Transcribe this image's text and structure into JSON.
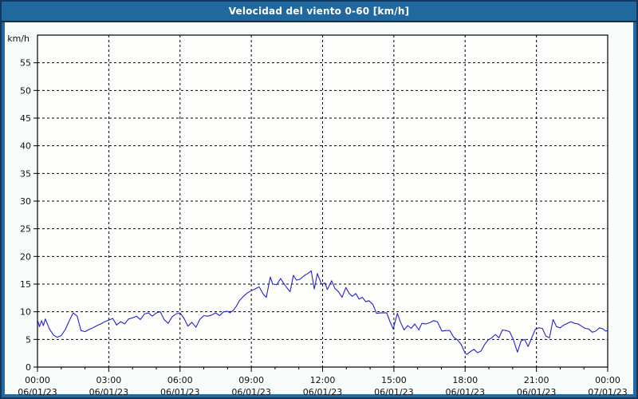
{
  "colors": {
    "outer_border": "#16375c",
    "frame": "#24689e",
    "titlebar": "#21689f",
    "title_separator": "#0d2e4d",
    "content_bg": "#f7fbfa",
    "plot_bg": "#fefefd",
    "grid": "#000000",
    "axis": "#000000",
    "line": "#2323cd"
  },
  "chart_data": {
    "type": "line",
    "title": "Velocidad del viento 0-60 [km/h]",
    "ylabel": "km/h",
    "xlabel": "",
    "ylim": [
      0,
      60
    ],
    "xlim_hours": [
      0,
      24
    ],
    "y_tick_step": 5,
    "y_ticks": [
      0,
      5,
      10,
      15,
      20,
      25,
      30,
      35,
      40,
      45,
      50,
      55
    ],
    "grid": "dashed",
    "legend": "none",
    "x_minor_tick_hours": 1,
    "x_major_ticks": [
      {
        "hour": 0,
        "time": "00:00",
        "date": "06/01/23"
      },
      {
        "hour": 3,
        "time": "03:00",
        "date": "06/01/23"
      },
      {
        "hour": 6,
        "time": "06:00",
        "date": "06/01/23"
      },
      {
        "hour": 9,
        "time": "09:00",
        "date": "06/01/23"
      },
      {
        "hour": 12,
        "time": "12:00",
        "date": "06/01/23"
      },
      {
        "hour": 15,
        "time": "15:00",
        "date": "06/01/23"
      },
      {
        "hour": 18,
        "time": "18:00",
        "date": "06/01/23"
      },
      {
        "hour": 21,
        "time": "21:00",
        "date": "06/01/23"
      },
      {
        "hour": 24,
        "time": "00:00",
        "date": "07/01/23"
      }
    ],
    "series": [
      {
        "name": "Velocidad del viento",
        "unit": "km/h",
        "points": [
          [
            0,
            8.6
          ],
          [
            0.08,
            7.3
          ],
          [
            0.17,
            8.4
          ],
          [
            0.25,
            7.5
          ],
          [
            0.33,
            8.7
          ],
          [
            0.5,
            6.9
          ],
          [
            0.67,
            5.8
          ],
          [
            0.83,
            5.4
          ],
          [
            1,
            5.7
          ],
          [
            1.17,
            6.8
          ],
          [
            1.33,
            8.3
          ],
          [
            1.5,
            9.8
          ],
          [
            1.67,
            9.2
          ],
          [
            1.83,
            6.6
          ],
          [
            2,
            6.4
          ],
          [
            2.17,
            6.8
          ],
          [
            2.33,
            7.1
          ],
          [
            2.5,
            7.5
          ],
          [
            2.67,
            7.8
          ],
          [
            2.83,
            8.2
          ],
          [
            3,
            8.5
          ],
          [
            3.17,
            8.8
          ],
          [
            3.33,
            7.6
          ],
          [
            3.5,
            8.2
          ],
          [
            3.67,
            7.8
          ],
          [
            3.83,
            8.7
          ],
          [
            4,
            8.9
          ],
          [
            4.17,
            9.2
          ],
          [
            4.33,
            8.6
          ],
          [
            4.5,
            9.6
          ],
          [
            4.67,
            9.8
          ],
          [
            4.83,
            9.2
          ],
          [
            5,
            9.8
          ],
          [
            5.17,
            10
          ],
          [
            5.33,
            8.6
          ],
          [
            5.5,
            7.9
          ],
          [
            5.67,
            9.1
          ],
          [
            5.83,
            9.6
          ],
          [
            6,
            9.8
          ],
          [
            6.17,
            8.8
          ],
          [
            6.33,
            7.4
          ],
          [
            6.5,
            8.1
          ],
          [
            6.67,
            7.2
          ],
          [
            6.83,
            8.6
          ],
          [
            7,
            9.3
          ],
          [
            7.17,
            9.2
          ],
          [
            7.33,
            9.4
          ],
          [
            7.5,
            9.8
          ],
          [
            7.67,
            9.3
          ],
          [
            7.83,
            10
          ],
          [
            8,
            10.1
          ],
          [
            8.1,
            9.8
          ],
          [
            8.25,
            10.3
          ],
          [
            8.37,
            11
          ],
          [
            8.5,
            12
          ],
          [
            8.67,
            12.8
          ],
          [
            8.83,
            13.4
          ],
          [
            9,
            13.8
          ],
          [
            9.15,
            14.1
          ],
          [
            9.33,
            14.5
          ],
          [
            9.5,
            13.2
          ],
          [
            9.63,
            12.6
          ],
          [
            9.8,
            16.3
          ],
          [
            9.9,
            15
          ],
          [
            10.07,
            14.9
          ],
          [
            10.23,
            16
          ],
          [
            10.4,
            14.9
          ],
          [
            10.63,
            13.6
          ],
          [
            10.77,
            16.6
          ],
          [
            10.9,
            15.7
          ],
          [
            11.05,
            15.9
          ],
          [
            11.25,
            16.6
          ],
          [
            11.38,
            16.9
          ],
          [
            11.52,
            17.4
          ],
          [
            11.65,
            14.1
          ],
          [
            11.78,
            16.9
          ],
          [
            11.95,
            15
          ],
          [
            12.1,
            15.2
          ],
          [
            12.2,
            14
          ],
          [
            12.38,
            15.6
          ],
          [
            12.52,
            14.2
          ],
          [
            12.67,
            13.6
          ],
          [
            12.82,
            12.6
          ],
          [
            12.98,
            14.4
          ],
          [
            13.12,
            13.3
          ],
          [
            13.25,
            12.8
          ],
          [
            13.4,
            13.3
          ],
          [
            13.53,
            12.3
          ],
          [
            13.67,
            12.6
          ],
          [
            13.82,
            11.8
          ],
          [
            13.95,
            12
          ],
          [
            14.12,
            11.3
          ],
          [
            14.27,
            9.7
          ],
          [
            14.45,
            9.8
          ],
          [
            14.7,
            9.8
          ],
          [
            14.83,
            8.3
          ],
          [
            14.97,
            6.9
          ],
          [
            15.15,
            9.7
          ],
          [
            15.28,
            8.1
          ],
          [
            15.43,
            6.7
          ],
          [
            15.58,
            7.5
          ],
          [
            15.73,
            7
          ],
          [
            15.88,
            7.8
          ],
          [
            16.05,
            6.7
          ],
          [
            16.18,
            7.9
          ],
          [
            16.35,
            7.8
          ],
          [
            16.5,
            8
          ],
          [
            16.68,
            8.4
          ],
          [
            16.83,
            8.2
          ],
          [
            17.02,
            6.5
          ],
          [
            17.18,
            6.6
          ],
          [
            17.35,
            6.6
          ],
          [
            17.52,
            5.4
          ],
          [
            17.68,
            4.9
          ],
          [
            17.83,
            4.1
          ],
          [
            18,
            2.5
          ],
          [
            18.08,
            2.3
          ],
          [
            18.22,
            2.8
          ],
          [
            18.37,
            3.2
          ],
          [
            18.52,
            2.6
          ],
          [
            18.67,
            2.9
          ],
          [
            18.82,
            4.1
          ],
          [
            18.97,
            4.9
          ],
          [
            19.1,
            5.2
          ],
          [
            19.27,
            5.9
          ],
          [
            19.42,
            5.3
          ],
          [
            19.57,
            6.7
          ],
          [
            19.72,
            6.6
          ],
          [
            19.87,
            6.4
          ],
          [
            20.02,
            5.1
          ],
          [
            20.2,
            2.7
          ],
          [
            20.35,
            4.7
          ],
          [
            20.5,
            5
          ],
          [
            20.65,
            3.7
          ],
          [
            20.82,
            5.5
          ],
          [
            20.95,
            6.8
          ],
          [
            21.1,
            7.1
          ],
          [
            21.25,
            7
          ],
          [
            21.4,
            5.6
          ],
          [
            21.55,
            5.3
          ],
          [
            21.7,
            8.6
          ],
          [
            21.85,
            7.3
          ],
          [
            22,
            7.1
          ],
          [
            22.15,
            7.6
          ],
          [
            22.3,
            7.9
          ],
          [
            22.45,
            8.2
          ],
          [
            22.6,
            7.9
          ],
          [
            22.75,
            7.8
          ],
          [
            22.9,
            7.4
          ],
          [
            23.05,
            7
          ],
          [
            23.2,
            6.9
          ],
          [
            23.35,
            6.3
          ],
          [
            23.5,
            6.5
          ],
          [
            23.65,
            7.1
          ],
          [
            23.8,
            6.9
          ],
          [
            23.92,
            6.5
          ],
          [
            24,
            6.6
          ]
        ]
      }
    ]
  }
}
